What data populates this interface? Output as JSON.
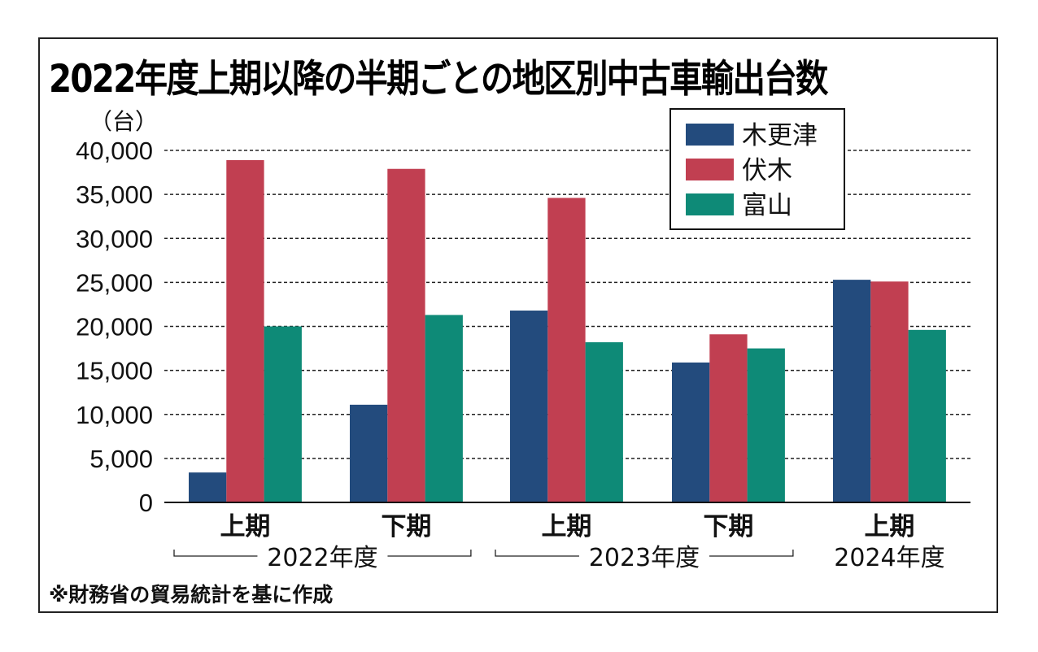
{
  "chart_data": {
    "type": "bar",
    "title": "2022年度上期以降の半期ごとの地区別中古車輸出台数",
    "ylabel": "（台）",
    "xlabel": "",
    "ylim": [
      0,
      40000
    ],
    "yticks": [
      0,
      5000,
      10000,
      15000,
      20000,
      25000,
      30000,
      35000,
      40000
    ],
    "ytick_labels": [
      "0",
      "5,000",
      "10,000",
      "15,000",
      "20,000",
      "25,000",
      "30,000",
      "35,000",
      "40,000"
    ],
    "grid": true,
    "categories": [
      "上期",
      "下期",
      "上期",
      "下期",
      "上期"
    ],
    "category_groups": [
      {
        "label": "2022年度",
        "members": [
          0,
          1
        ],
        "bracket": true
      },
      {
        "label": "2023年度",
        "members": [
          2,
          3
        ],
        "bracket": true
      },
      {
        "label": "2024年度",
        "members": [
          4
        ],
        "bracket": false
      }
    ],
    "series": [
      {
        "name": "木更津",
        "color": "#234b7d",
        "values": [
          3400,
          11100,
          21800,
          15900,
          25300
        ]
      },
      {
        "name": "伏木",
        "color": "#c13f51",
        "values": [
          38900,
          37900,
          34600,
          19100,
          25100
        ]
      },
      {
        "name": "富山",
        "color": "#0e8a77",
        "values": [
          20000,
          21300,
          18200,
          17500,
          19600
        ]
      }
    ],
    "legend_position": "top-right",
    "source_note": "※財務省の貿易統計を基に作成"
  }
}
